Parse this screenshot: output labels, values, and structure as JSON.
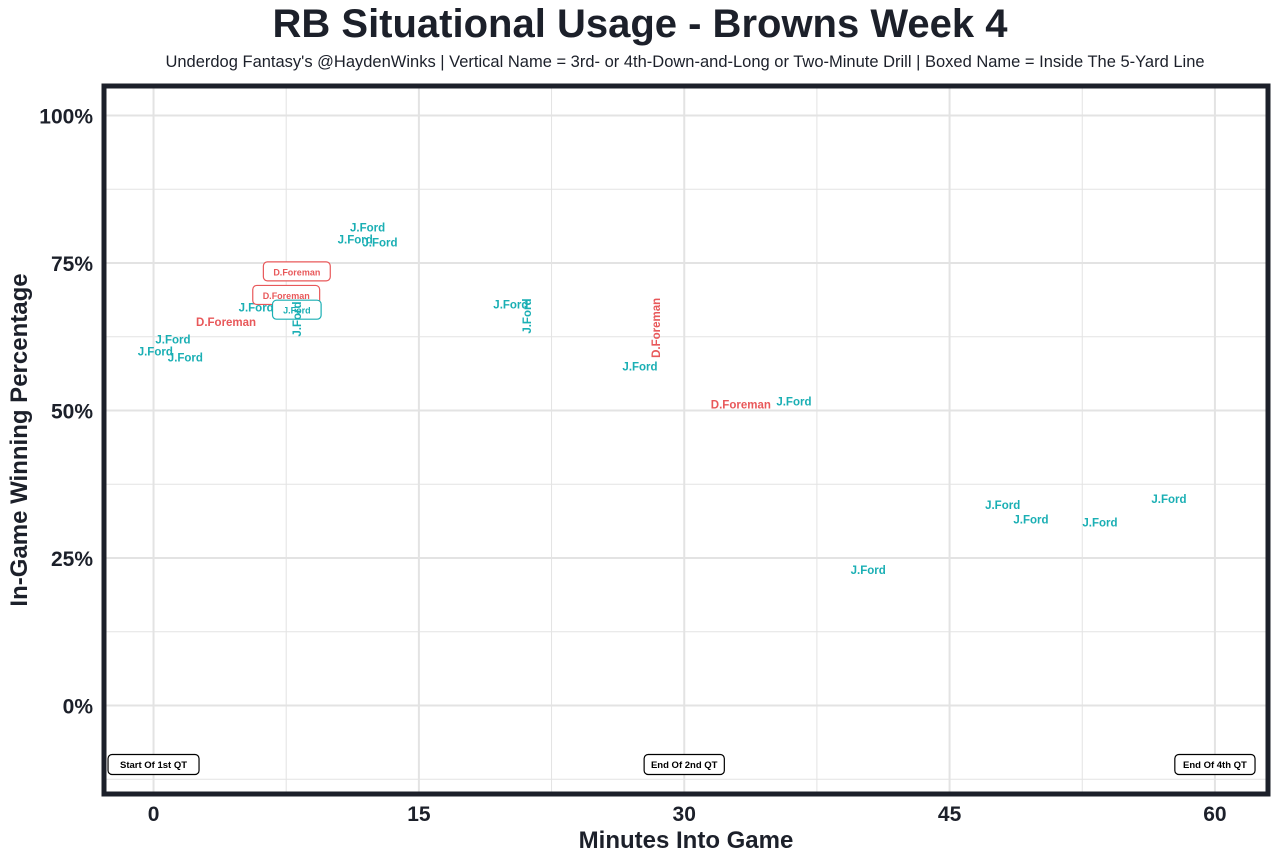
{
  "colors": {
    "foreman": "#e8585a",
    "ford": "#1aafb4",
    "frame": "#1c202a",
    "grid": "#e3e3e3"
  },
  "chart_data": {
    "type": "scatter",
    "title": "RB Situational Usage - Browns Week 4",
    "subtitle": "Underdog Fantasy's @HaydenWinks | Vertical Name = 3rd- or 4th-Down-and-Long or Two-Minute Drill | Boxed Name = Inside The 5-Yard Line",
    "xlabel": "Minutes Into Game",
    "ylabel": "In-Game Winning Percentage",
    "xlim": [
      -2.8,
      63
    ],
    "ylim": [
      -15,
      105
    ],
    "x_ticks": [
      {
        "value": 0,
        "label": "0"
      },
      {
        "value": 15,
        "label": "15"
      },
      {
        "value": 30,
        "label": "30"
      },
      {
        "value": 45,
        "label": "45"
      },
      {
        "value": 60,
        "label": "60"
      }
    ],
    "y_ticks": [
      {
        "value": 0,
        "label": "0%"
      },
      {
        "value": 25,
        "label": "25%"
      },
      {
        "value": 50,
        "label": "50%"
      },
      {
        "value": 75,
        "label": "75%"
      },
      {
        "value": 100,
        "label": "100%"
      }
    ],
    "grid": true,
    "points": [
      {
        "x": 0.1,
        "y": 60,
        "label": "J.Ford",
        "player": "ford",
        "style": "normal"
      },
      {
        "x": 1.1,
        "y": 62,
        "label": "J.Ford",
        "player": "ford",
        "style": "normal"
      },
      {
        "x": 1.8,
        "y": 59,
        "label": "J.Ford",
        "player": "ford",
        "style": "normal"
      },
      {
        "x": 4.1,
        "y": 65,
        "label": "D.Foreman",
        "player": "foreman",
        "style": "normal"
      },
      {
        "x": 5.8,
        "y": 67.5,
        "label": "J.Ford",
        "player": "ford",
        "style": "normal"
      },
      {
        "x": 7.5,
        "y": 69.5,
        "label": "D.Foreman",
        "player": "foreman",
        "style": "boxed"
      },
      {
        "x": 8.1,
        "y": 73.5,
        "label": "D.Foreman",
        "player": "foreman",
        "style": "boxed"
      },
      {
        "x": 8.1,
        "y": 67,
        "label": "J.Ford",
        "player": "ford",
        "style": "boxed"
      },
      {
        "x": 8.1,
        "y": 65.5,
        "label": "J.Ford",
        "player": "ford",
        "style": "vertical"
      },
      {
        "x": 11.4,
        "y": 79,
        "label": "J.Ford",
        "player": "ford",
        "style": "normal"
      },
      {
        "x": 12.1,
        "y": 81,
        "label": "J.Ford",
        "player": "ford",
        "style": "normal"
      },
      {
        "x": 12.8,
        "y": 78.5,
        "label": "J.Ford",
        "player": "ford",
        "style": "normal"
      },
      {
        "x": 20.2,
        "y": 68,
        "label": "J.Ford",
        "player": "ford",
        "style": "normal"
      },
      {
        "x": 21.1,
        "y": 66,
        "label": "J.Ford",
        "player": "ford",
        "style": "vertical"
      },
      {
        "x": 27.5,
        "y": 57.5,
        "label": "J.Ford",
        "player": "ford",
        "style": "normal"
      },
      {
        "x": 28.4,
        "y": 64,
        "label": "D.Foreman",
        "player": "foreman",
        "style": "vertical"
      },
      {
        "x": 33.2,
        "y": 51,
        "label": "D.Foreman",
        "player": "foreman",
        "style": "normal"
      },
      {
        "x": 36.2,
        "y": 51.5,
        "label": "J.Ford",
        "player": "ford",
        "style": "normal"
      },
      {
        "x": 40.4,
        "y": 23,
        "label": "J.Ford",
        "player": "ford",
        "style": "normal"
      },
      {
        "x": 48.0,
        "y": 34,
        "label": "J.Ford",
        "player": "ford",
        "style": "normal"
      },
      {
        "x": 49.6,
        "y": 31.5,
        "label": "J.Ford",
        "player": "ford",
        "style": "normal"
      },
      {
        "x": 53.5,
        "y": 31,
        "label": "J.Ford",
        "player": "ford",
        "style": "normal"
      },
      {
        "x": 57.4,
        "y": 35,
        "label": "J.Ford",
        "player": "ford",
        "style": "normal"
      }
    ],
    "annotations": [
      {
        "x": 0,
        "y": -10,
        "label": "Start Of 1st QT"
      },
      {
        "x": 30,
        "y": -10,
        "label": "End Of 2nd QT"
      },
      {
        "x": 60,
        "y": -10,
        "label": "End Of 4th QT"
      }
    ]
  }
}
